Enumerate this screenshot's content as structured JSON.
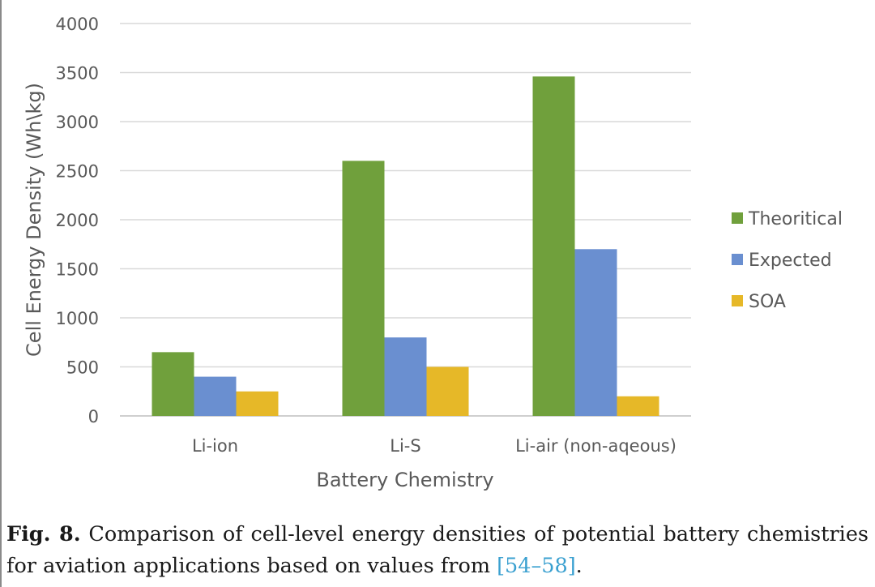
{
  "chart_data": {
    "type": "bar",
    "categories": [
      "Li-ion",
      "Li-S",
      "Li-air (non-aqeous)"
    ],
    "series": [
      {
        "name": "Theoritical",
        "values": [
          650,
          2600,
          3460
        ],
        "color": "#70a03c"
      },
      {
        "name": "Expected",
        "values": [
          400,
          800,
          1700
        ],
        "color": "#6a8fd0"
      },
      {
        "name": "SOA",
        "values": [
          250,
          500,
          200
        ],
        "color": "#e6b828"
      }
    ],
    "xlabel": "Battery Chemistry",
    "ylabel": "Cell Energy Density (Wh\\kg)",
    "ylim": [
      0,
      4000
    ],
    "yticks": [
      0,
      500,
      1000,
      1500,
      2000,
      2500,
      3000,
      3500,
      4000
    ],
    "grid": true,
    "legend_position": "right"
  },
  "caption": {
    "figure_number": "Fig. 8.",
    "text": "Comparison of cell-level energy densities of potential battery chemistries for aviation applications based on values from",
    "reference": "[54–58]",
    "end": "."
  }
}
